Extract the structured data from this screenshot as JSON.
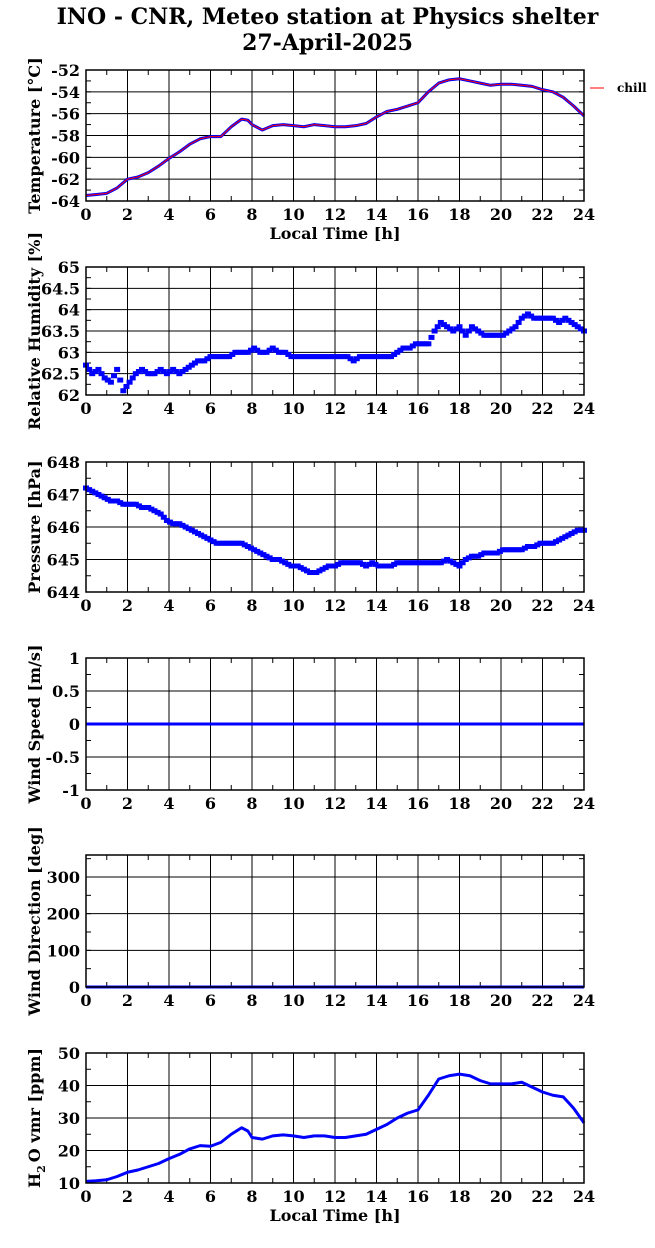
{
  "header": {
    "title": "INO - CNR, Meteo station at Physics shelter",
    "date": "27-April-2025"
  },
  "colors": {
    "series_main": "#0000ff",
    "series_chill": "#ff0000",
    "axis": "#000000",
    "grid": "#000000"
  },
  "chart_data": [
    {
      "type": "line",
      "ylabel": "Temperature [°C]",
      "xlabel": "Local Time [h]",
      "xlim": [
        0,
        24
      ],
      "ylim": [
        -64,
        -52
      ],
      "yticks": [
        -64,
        -62,
        -60,
        -58,
        -56,
        -54,
        -52
      ],
      "xticks": [
        0,
        2,
        4,
        6,
        8,
        10,
        12,
        14,
        16,
        18,
        20,
        22,
        24
      ],
      "grid": true,
      "legend": {
        "position": "right",
        "entries": [
          "chill"
        ]
      },
      "series": [
        {
          "name": "",
          "color": "#0000ff",
          "x": [
            0,
            0.5,
            1,
            1.5,
            2,
            2.5,
            3,
            3.5,
            4,
            4.5,
            5,
            5.5,
            6,
            6.5,
            7,
            7.5,
            7.8,
            8,
            8.5,
            9,
            9.5,
            10,
            10.5,
            11,
            11.5,
            12,
            12.5,
            13,
            13.5,
            14,
            14.5,
            15,
            15.5,
            16,
            16.5,
            17,
            17.5,
            18,
            18.5,
            19,
            19.5,
            20,
            20.5,
            21,
            21.5,
            22,
            22.5,
            23,
            23.5,
            24
          ],
          "y": [
            -63.5,
            -63.4,
            -63.3,
            -62.8,
            -62.0,
            -61.8,
            -61.4,
            -60.8,
            -60.1,
            -59.5,
            -58.8,
            -58.3,
            -58.1,
            -58.1,
            -57.2,
            -56.5,
            -56.6,
            -57.0,
            -57.5,
            -57.1,
            -57.0,
            -57.1,
            -57.2,
            -57.0,
            -57.1,
            -57.2,
            -57.2,
            -57.1,
            -56.9,
            -56.3,
            -55.8,
            -55.6,
            -55.3,
            -55.0,
            -54.0,
            -53.2,
            -52.9,
            -52.8,
            -53.0,
            -53.2,
            -53.4,
            -53.3,
            -53.3,
            -53.4,
            -53.5,
            -53.8,
            -54.0,
            -54.5,
            -55.3,
            -56.2
          ]
        },
        {
          "name": "chill",
          "color": "#ff0000",
          "x": [
            0,
            0.5,
            1,
            1.5,
            2,
            2.5,
            3,
            3.5,
            4,
            4.5,
            5,
            5.5,
            6,
            6.5,
            7,
            7.5,
            7.8,
            8,
            8.5,
            9,
            9.5,
            10,
            10.5,
            11,
            11.5,
            12,
            12.5,
            13,
            13.5,
            14,
            14.5,
            15,
            15.5,
            16,
            16.5,
            17,
            17.5,
            18,
            18.5,
            19,
            19.5,
            20,
            20.5,
            21,
            21.5,
            22,
            22.5,
            23,
            23.5,
            24
          ],
          "y": [
            -63.5,
            -63.4,
            -63.3,
            -62.8,
            -62.0,
            -61.8,
            -61.4,
            -60.8,
            -60.1,
            -59.5,
            -58.8,
            -58.3,
            -58.1,
            -58.1,
            -57.2,
            -56.5,
            -56.6,
            -57.0,
            -57.5,
            -57.1,
            -57.0,
            -57.1,
            -57.2,
            -57.0,
            -57.1,
            -57.2,
            -57.2,
            -57.1,
            -56.9,
            -56.3,
            -55.8,
            -55.6,
            -55.3,
            -55.0,
            -54.0,
            -53.2,
            -52.9,
            -52.8,
            -53.0,
            -53.2,
            -53.4,
            -53.3,
            -53.3,
            -53.4,
            -53.5,
            -53.8,
            -54.0,
            -54.5,
            -55.3,
            -56.2
          ]
        }
      ]
    },
    {
      "type": "scatter",
      "ylabel": "Relative Humidity [%]",
      "xlim": [
        0,
        24
      ],
      "ylim": [
        62,
        65
      ],
      "yticks": [
        62,
        62.5,
        63,
        63.5,
        64,
        64.5,
        65
      ],
      "xticks": [
        0,
        2,
        4,
        6,
        8,
        10,
        12,
        14,
        16,
        18,
        20,
        22,
        24
      ],
      "grid": true,
      "series": [
        {
          "color": "#0000ff",
          "x": [
            0,
            0.3,
            0.6,
            0.9,
            1.2,
            1.5,
            1.8,
            2.1,
            2.4,
            2.7,
            3.0,
            3.3,
            3.6,
            3.9,
            4.2,
            4.5,
            4.8,
            5.1,
            5.4,
            5.7,
            6.0,
            6.3,
            6.6,
            6.9,
            7.2,
            7.5,
            7.8,
            8.1,
            8.4,
            8.7,
            9.0,
            9.3,
            9.6,
            9.9,
            10.2,
            10.5,
            10.8,
            11.1,
            11.4,
            11.7,
            12.0,
            12.3,
            12.6,
            12.9,
            13.2,
            13.5,
            13.8,
            14.1,
            14.4,
            14.7,
            15.0,
            15.3,
            15.6,
            15.9,
            16.2,
            16.5,
            16.8,
            17.1,
            17.4,
            17.7,
            18.0,
            18.3,
            18.6,
            18.9,
            19.2,
            19.5,
            19.8,
            20.1,
            20.4,
            20.7,
            21.0,
            21.3,
            21.6,
            21.9,
            22.2,
            22.5,
            22.8,
            23.1,
            23.4,
            23.7,
            24.0
          ],
          "y": [
            62.7,
            62.5,
            62.6,
            62.4,
            62.3,
            62.6,
            62.1,
            62.3,
            62.5,
            62.6,
            62.5,
            62.5,
            62.6,
            62.5,
            62.6,
            62.5,
            62.6,
            62.7,
            62.8,
            62.8,
            62.9,
            62.9,
            62.9,
            62.9,
            63.0,
            63.0,
            63.0,
            63.1,
            63.0,
            63.0,
            63.1,
            63.0,
            63.0,
            62.9,
            62.9,
            62.9,
            62.9,
            62.9,
            62.9,
            62.9,
            62.9,
            62.9,
            62.9,
            62.8,
            62.9,
            62.9,
            62.9,
            62.9,
            62.9,
            62.9,
            63.0,
            63.1,
            63.1,
            63.2,
            63.2,
            63.2,
            63.5,
            63.7,
            63.6,
            63.5,
            63.6,
            63.4,
            63.6,
            63.5,
            63.4,
            63.4,
            63.4,
            63.4,
            63.5,
            63.6,
            63.8,
            63.9,
            63.8,
            63.8,
            63.8,
            63.8,
            63.7,
            63.8,
            63.7,
            63.6,
            63.5
          ]
        }
      ]
    },
    {
      "type": "scatter",
      "ylabel": "Pressure [hPa]",
      "xlim": [
        0,
        24
      ],
      "ylim": [
        644,
        648
      ],
      "yticks": [
        644,
        645,
        646,
        647,
        648
      ],
      "xticks": [
        0,
        2,
        4,
        6,
        8,
        10,
        12,
        14,
        16,
        18,
        20,
        22,
        24
      ],
      "grid": true,
      "series": [
        {
          "color": "#0000ff",
          "x": [
            0,
            0.3,
            0.6,
            0.9,
            1.2,
            1.5,
            1.8,
            2.1,
            2.4,
            2.7,
            3.0,
            3.3,
            3.6,
            3.9,
            4.2,
            4.5,
            4.8,
            5.1,
            5.4,
            5.7,
            6.0,
            6.3,
            6.6,
            6.9,
            7.2,
            7.5,
            7.8,
            8.1,
            8.4,
            8.7,
            9.0,
            9.3,
            9.6,
            9.9,
            10.2,
            10.5,
            10.8,
            11.1,
            11.4,
            11.7,
            12.0,
            12.3,
            12.6,
            12.9,
            13.2,
            13.5,
            13.8,
            14.1,
            14.4,
            14.7,
            15.0,
            15.3,
            15.6,
            15.9,
            16.2,
            16.5,
            16.8,
            17.1,
            17.4,
            17.7,
            18.0,
            18.3,
            18.6,
            18.9,
            19.2,
            19.5,
            19.8,
            20.1,
            20.4,
            20.7,
            21.0,
            21.3,
            21.6,
            21.9,
            22.2,
            22.5,
            22.8,
            23.1,
            23.4,
            23.7,
            24.0
          ],
          "y": [
            647.2,
            647.1,
            647.0,
            646.9,
            646.8,
            646.8,
            646.7,
            646.7,
            646.7,
            646.6,
            646.6,
            646.5,
            646.4,
            646.2,
            646.1,
            646.1,
            646.0,
            645.9,
            645.8,
            645.7,
            645.6,
            645.5,
            645.5,
            645.5,
            645.5,
            645.5,
            645.4,
            645.3,
            645.2,
            645.1,
            645.0,
            645.0,
            644.9,
            644.8,
            644.8,
            644.7,
            644.6,
            644.6,
            644.7,
            644.8,
            644.8,
            644.9,
            644.9,
            644.9,
            644.9,
            644.8,
            644.9,
            644.8,
            644.8,
            644.8,
            644.9,
            644.9,
            644.9,
            644.9,
            644.9,
            644.9,
            644.9,
            644.9,
            645.0,
            644.9,
            644.8,
            645.0,
            645.1,
            645.1,
            645.2,
            645.2,
            645.2,
            645.3,
            645.3,
            645.3,
            645.3,
            645.4,
            645.4,
            645.5,
            645.5,
            645.5,
            645.6,
            645.7,
            645.8,
            645.9,
            645.9
          ]
        }
      ]
    },
    {
      "type": "line",
      "ylabel": "Wind Speed [m/s]",
      "xlim": [
        0,
        24
      ],
      "ylim": [
        -1,
        1
      ],
      "yticks": [
        -1,
        -0.5,
        0,
        0.5,
        1
      ],
      "xticks": [
        0,
        2,
        4,
        6,
        8,
        10,
        12,
        14,
        16,
        18,
        20,
        22,
        24
      ],
      "grid": true,
      "series": [
        {
          "color": "#0000ff",
          "x": [
            0,
            24
          ],
          "y": [
            0,
            0
          ]
        }
      ]
    },
    {
      "type": "line",
      "ylabel": "Wind Direction [deg]",
      "xlim": [
        0,
        24
      ],
      "ylim": [
        0,
        360
      ],
      "yticks": [
        0,
        100,
        200,
        300
      ],
      "xticks": [
        0,
        2,
        4,
        6,
        8,
        10,
        12,
        14,
        16,
        18,
        20,
        22,
        24
      ],
      "grid": true,
      "series": [
        {
          "color": "#0000ff",
          "x": [
            0,
            24
          ],
          "y": [
            0,
            0
          ]
        }
      ]
    },
    {
      "type": "line",
      "ylabel": "H2O vmr [ppm]",
      "xlabel": "Local Time [h]",
      "xlim": [
        0,
        24
      ],
      "ylim": [
        10,
        50
      ],
      "yticks": [
        10,
        20,
        30,
        40,
        50
      ],
      "xticks": [
        0,
        2,
        4,
        6,
        8,
        10,
        12,
        14,
        16,
        18,
        20,
        22,
        24
      ],
      "grid": true,
      "series": [
        {
          "color": "#0000ff",
          "x": [
            0,
            0.5,
            1,
            1.5,
            2,
            2.5,
            3,
            3.5,
            4,
            4.5,
            5,
            5.5,
            6,
            6.5,
            7,
            7.5,
            7.8,
            8,
            8.5,
            9,
            9.5,
            10,
            10.5,
            11,
            11.5,
            12,
            12.5,
            13,
            13.5,
            14,
            14.5,
            15,
            15.5,
            16,
            16.5,
            17,
            17.5,
            18,
            18.5,
            19,
            19.5,
            20,
            20.5,
            21,
            21.5,
            22,
            22.5,
            23,
            23.5,
            24
          ],
          "y": [
            10.5,
            10.7,
            11.0,
            12.0,
            13.3,
            14.0,
            15.0,
            16.0,
            17.5,
            18.8,
            20.5,
            21.5,
            21.3,
            22.5,
            25.0,
            27.0,
            26.0,
            24.0,
            23.5,
            24.5,
            24.8,
            24.5,
            24.0,
            24.5,
            24.5,
            24.0,
            24.0,
            24.5,
            25.0,
            26.5,
            28.0,
            30.0,
            31.5,
            32.5,
            37.0,
            42.0,
            43.0,
            43.5,
            43.0,
            41.5,
            40.5,
            40.5,
            40.5,
            41.0,
            39.5,
            38.0,
            37.0,
            36.5,
            33.0,
            28.5
          ]
        }
      ]
    }
  ]
}
